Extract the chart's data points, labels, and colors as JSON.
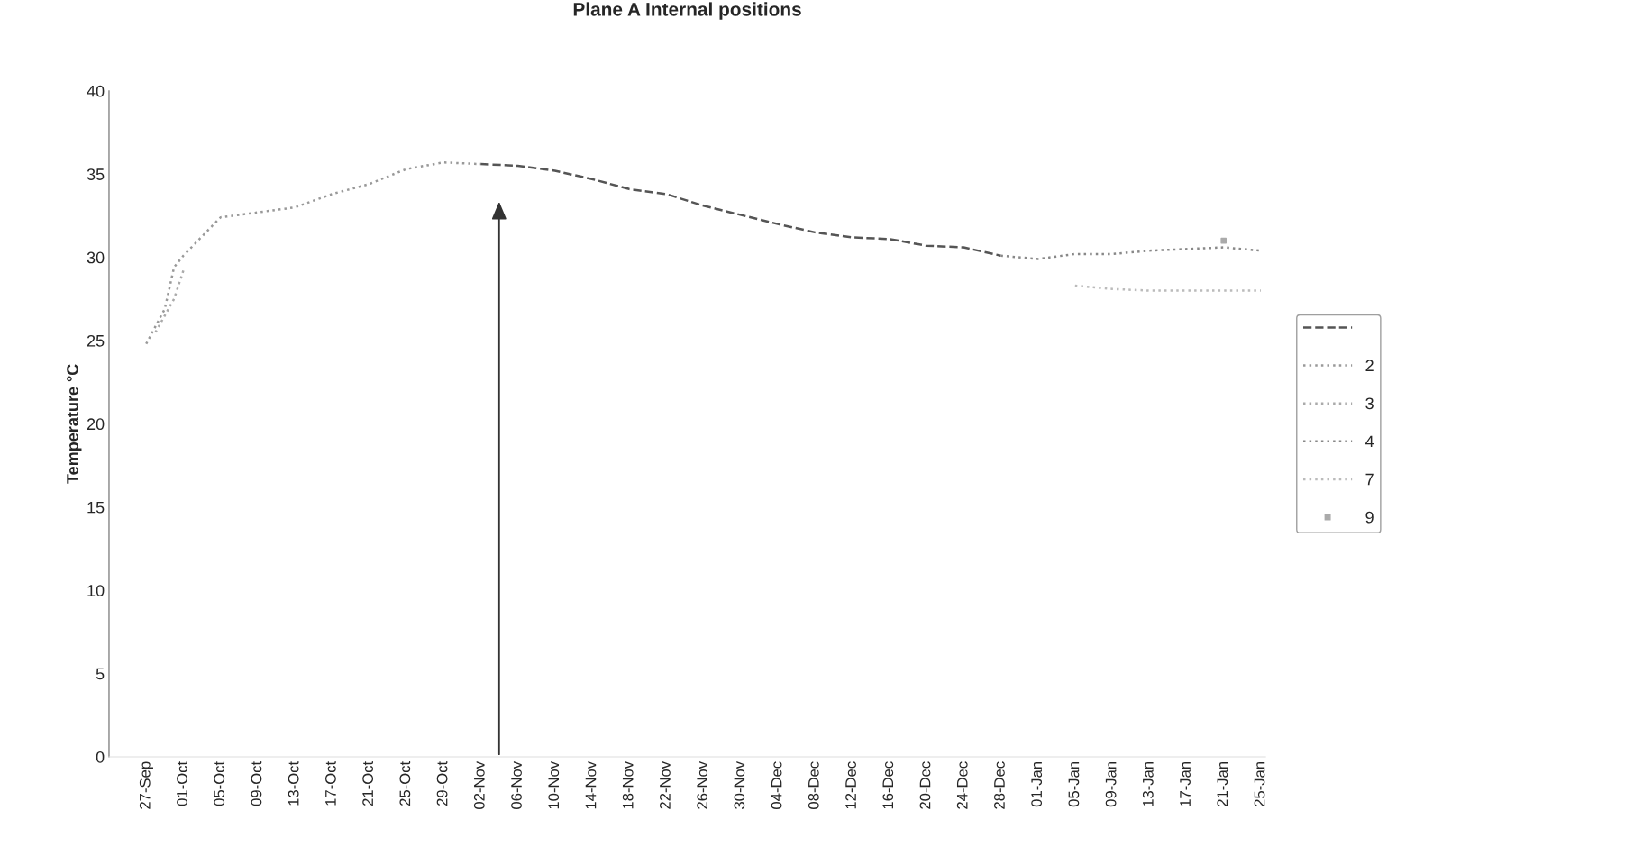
{
  "chart_data": {
    "type": "line",
    "title": "Plane A Internal positions",
    "ylabel": "Temperature °C",
    "categories": [
      "27-Sep",
      null,
      null,
      null,
      "01-Oct",
      null,
      null,
      null,
      "05-Oct",
      null,
      null,
      null,
      "09-Oct",
      null,
      null,
      null,
      "13-Oct",
      null,
      null,
      null,
      "17-Oct",
      null,
      null,
      null,
      "21-Oct",
      null,
      null,
      null,
      "25-Oct",
      null,
      null,
      null,
      "29-Oct",
      null,
      null,
      null,
      "02-Nov",
      null,
      null,
      null,
      "06-Nov",
      null,
      null,
      null,
      "10-Nov",
      null,
      null,
      null,
      "14-Nov",
      null,
      null,
      null,
      "18-Nov",
      null,
      null,
      null,
      "22-Nov",
      null,
      null,
      null,
      "26-Nov",
      null,
      null,
      null,
      "30-Nov",
      null,
      null,
      null,
      "04-Dec",
      null,
      null,
      null,
      "08-Dec",
      null,
      null,
      null,
      "12-Dec",
      null,
      null,
      null,
      "16-Dec",
      null,
      null,
      null,
      "20-Dec",
      null,
      null,
      null,
      "24-Dec",
      null,
      null,
      null,
      "28-Dec",
      null,
      null,
      null,
      "01-Jan",
      null,
      null,
      null,
      "05-Jan",
      null,
      null,
      null,
      "09-Jan",
      null,
      null,
      null,
      "13-Jan",
      null,
      null,
      null,
      "17-Jan",
      null,
      null,
      null,
      "21-Jan",
      null,
      null,
      null,
      "25-Jan"
    ],
    "series": [
      {
        "color": "#555555",
        "line_style": "dashed",
        "values": [
          null,
          null,
          null,
          null,
          null,
          null,
          null,
          null,
          null,
          null,
          null,
          null,
          null,
          null,
          null,
          null,
          null,
          null,
          null,
          null,
          null,
          null,
          null,
          null,
          null,
          null,
          null,
          null,
          null,
          null,
          null,
          null,
          null,
          null,
          null,
          null,
          35.6,
          null,
          null,
          null,
          35.5,
          null,
          null,
          null,
          35.2,
          null,
          null,
          null,
          34.7,
          null,
          null,
          null,
          34.1,
          null,
          null,
          null,
          33.8,
          null,
          null,
          null,
          33.1,
          null,
          null,
          null,
          null,
          null,
          null,
          null,
          32.0,
          null,
          null,
          null,
          31.5,
          null,
          null,
          null,
          31.2,
          null,
          null,
          null,
          31.1,
          null,
          null,
          null,
          30.7,
          null,
          null,
          null,
          30.6,
          null,
          null,
          null,
          30.1,
          null,
          null,
          null,
          null,
          null,
          null,
          null,
          null,
          null,
          null,
          null,
          null,
          null,
          null,
          null,
          null,
          null,
          null,
          null,
          null,
          null,
          null,
          null,
          null,
          null,
          null,
          null,
          null
        ]
      },
      {
        "name": "2",
        "color": "#999999",
        "line_style": "dotted",
        "values": [
          24.8,
          null,
          26.9,
          29.4,
          30.1,
          null,
          null,
          null,
          32.4,
          null,
          null,
          null,
          null,
          null,
          null,
          null,
          33.0,
          null,
          null,
          null,
          33.8,
          null,
          null,
          null,
          34.4,
          null,
          null,
          null,
          35.3,
          null,
          null,
          null,
          35.7,
          null,
          null,
          null,
          35.6,
          null,
          null,
          null,
          null,
          null,
          null,
          null,
          null,
          null,
          null,
          null,
          null,
          null,
          null,
          null,
          null,
          null,
          null,
          null,
          null,
          null,
          null,
          null,
          null,
          null,
          null,
          null,
          null,
          null,
          null,
          null,
          null,
          null,
          null,
          null,
          null,
          null,
          null,
          null,
          null,
          null,
          null,
          null,
          null,
          null,
          null,
          null,
          null,
          null,
          null,
          null,
          null,
          null,
          null,
          null,
          null,
          null,
          null,
          null,
          null,
          null,
          null,
          null,
          null,
          null,
          null,
          null,
          null,
          null,
          null,
          null,
          null,
          null,
          null,
          null,
          null,
          null,
          null,
          null,
          null,
          null,
          null,
          null,
          null
        ]
      },
      {
        "name": "3",
        "color": "#aaaaaa",
        "line_style": "dotted",
        "values": [
          null,
          25.5,
          26.5,
          27.5,
          29.2,
          null,
          null,
          null,
          null,
          null,
          null,
          null,
          null,
          null,
          null,
          null,
          null,
          null,
          null,
          null,
          null,
          null,
          null,
          null,
          null,
          null,
          null,
          null,
          null,
          null,
          null,
          null,
          null,
          null,
          null,
          null,
          null,
          null,
          null,
          null,
          null,
          null,
          null,
          null,
          null,
          null,
          null,
          null,
          null,
          null,
          null,
          null,
          null,
          null,
          null,
          null,
          null,
          null,
          null,
          null,
          null,
          null,
          null,
          null,
          null,
          null,
          null,
          null,
          null,
          null,
          null,
          null,
          null,
          null,
          null,
          null,
          null,
          null,
          null,
          null,
          null,
          null,
          null,
          null,
          null,
          null,
          null,
          null,
          null,
          null,
          null,
          null,
          null,
          null,
          null,
          null,
          null,
          null,
          null,
          null,
          null,
          null,
          null,
          null,
          null,
          null,
          null,
          null,
          null,
          null,
          null,
          null,
          null,
          null,
          null,
          null,
          null,
          null,
          null,
          null,
          null
        ]
      },
      {
        "name": "4",
        "color": "#888888",
        "line_style": "dotted",
        "values": [
          null,
          null,
          null,
          null,
          null,
          null,
          null,
          null,
          null,
          null,
          null,
          null,
          null,
          null,
          null,
          null,
          null,
          null,
          null,
          null,
          null,
          null,
          null,
          null,
          null,
          null,
          null,
          null,
          null,
          null,
          null,
          null,
          null,
          null,
          null,
          null,
          null,
          null,
          null,
          null,
          null,
          null,
          null,
          null,
          null,
          null,
          null,
          null,
          null,
          null,
          null,
          null,
          null,
          null,
          null,
          null,
          null,
          null,
          null,
          null,
          null,
          null,
          null,
          null,
          null,
          null,
          null,
          null,
          null,
          null,
          null,
          null,
          null,
          null,
          null,
          null,
          null,
          null,
          null,
          null,
          null,
          null,
          null,
          null,
          null,
          null,
          null,
          null,
          null,
          null,
          null,
          null,
          30.1,
          null,
          null,
          null,
          29.9,
          null,
          null,
          null,
          30.2,
          null,
          null,
          null,
          30.2,
          null,
          null,
          null,
          30.4,
          null,
          null,
          null,
          null,
          null,
          null,
          null,
          30.6,
          null,
          null,
          null,
          30.4
        ]
      },
      {
        "name": "7",
        "color": "#bbbbbb",
        "line_style": "dotted",
        "values": [
          null,
          null,
          null,
          null,
          null,
          null,
          null,
          null,
          null,
          null,
          null,
          null,
          null,
          null,
          null,
          null,
          null,
          null,
          null,
          null,
          null,
          null,
          null,
          null,
          null,
          null,
          null,
          null,
          null,
          null,
          null,
          null,
          null,
          null,
          null,
          null,
          null,
          null,
          null,
          null,
          null,
          null,
          null,
          null,
          null,
          null,
          null,
          null,
          null,
          null,
          null,
          null,
          null,
          null,
          null,
          null,
          null,
          null,
          null,
          null,
          null,
          null,
          null,
          null,
          null,
          null,
          null,
          null,
          null,
          null,
          null,
          null,
          null,
          null,
          null,
          null,
          null,
          null,
          null,
          null,
          null,
          null,
          null,
          null,
          null,
          null,
          null,
          null,
          null,
          null,
          null,
          null,
          null,
          null,
          null,
          null,
          null,
          null,
          null,
          null,
          28.3,
          null,
          null,
          null,
          28.1,
          null,
          null,
          null,
          28.0,
          null,
          null,
          null,
          28.0,
          null,
          null,
          null,
          28.0,
          null,
          null,
          null,
          28.0
        ]
      },
      {
        "name": "9",
        "type": "scatter",
        "marker": "square",
        "color": "#aaaaaa",
        "values": [
          null,
          null,
          null,
          null,
          null,
          null,
          null,
          null,
          null,
          null,
          null,
          null,
          null,
          null,
          null,
          null,
          null,
          null,
          null,
          null,
          null,
          null,
          null,
          null,
          null,
          null,
          null,
          null,
          null,
          null,
          null,
          null,
          null,
          null,
          null,
          null,
          null,
          null,
          null,
          null,
          null,
          null,
          null,
          null,
          null,
          null,
          null,
          null,
          null,
          null,
          null,
          null,
          null,
          null,
          null,
          null,
          null,
          null,
          null,
          null,
          null,
          null,
          null,
          null,
          null,
          null,
          null,
          null,
          null,
          null,
          null,
          null,
          null,
          null,
          null,
          null,
          null,
          null,
          null,
          null,
          null,
          null,
          null,
          null,
          null,
          null,
          null,
          null,
          null,
          null,
          null,
          null,
          null,
          null,
          null,
          null,
          null,
          null,
          null,
          null,
          null,
          null,
          null,
          null,
          null,
          null,
          null,
          null,
          null,
          null,
          null,
          null,
          null,
          null,
          null,
          null,
          31.0,
          null,
          null,
          null,
          null
        ]
      }
    ],
    "ylim": [
      0,
      40
    ],
    "yticks": [
      0,
      5,
      10,
      15,
      20,
      25,
      30,
      35,
      40
    ],
    "grid": false,
    "legend": "right",
    "marker": "none"
  }
}
